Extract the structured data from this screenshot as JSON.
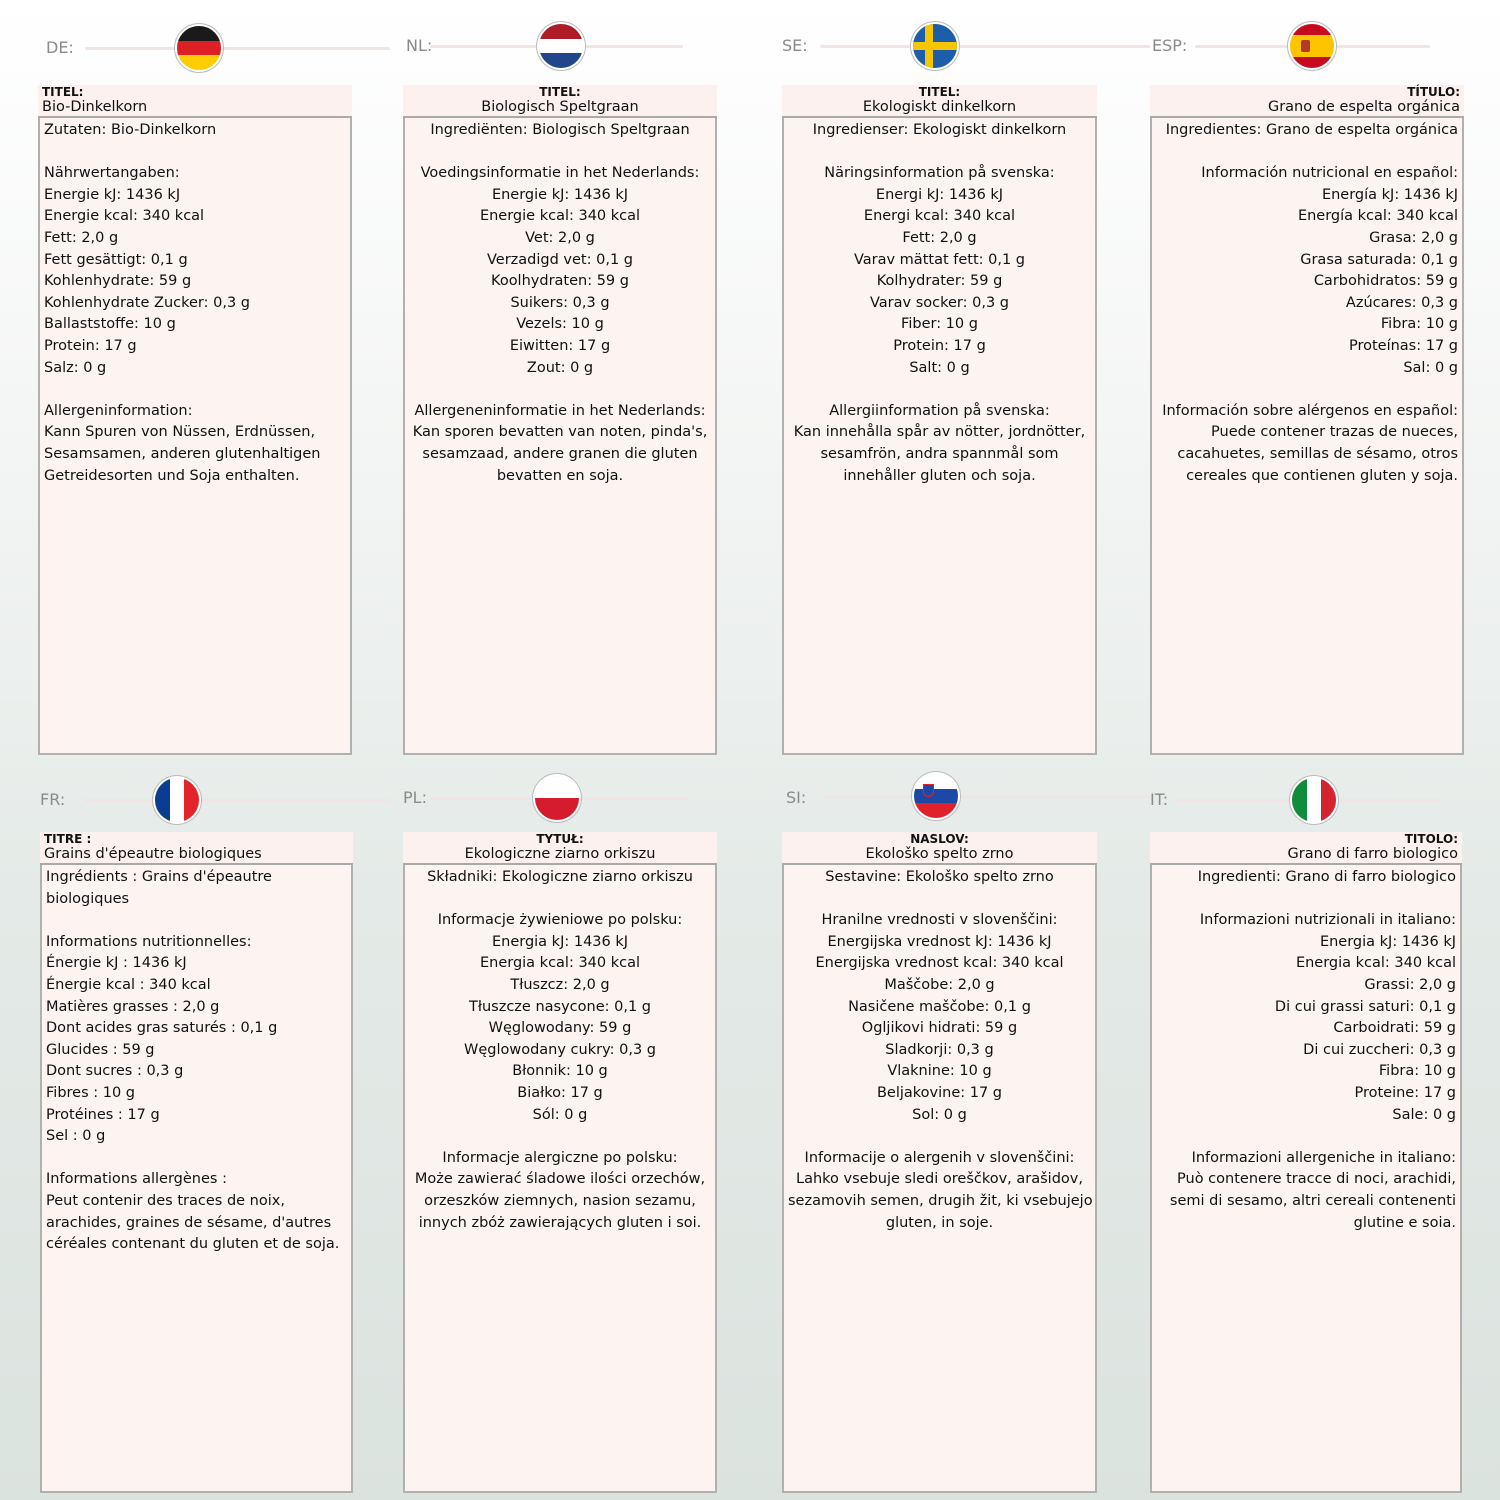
{
  "panels": [
    {
      "code": "DE:",
      "flag": "germany",
      "title_label": "TITEL:",
      "title": "Bio-Dinkelkorn",
      "align": "left",
      "lines": [
        "Zutaten: Bio-Dinkelkorn",
        "",
        "Nährwertangaben:",
        "Energie kJ: 1436 kJ",
        "Energie kcal: 340 kcal",
        "Fett: 2,0 g",
        "Fett gesättigt: 0,1 g",
        "Kohlenhydrate: 59 g",
        "Kohlenhydrate Zucker: 0,3 g",
        "Ballaststoffe: 10 g",
        "Protein: 17 g",
        "Salz: 0 g",
        "",
        "Allergeninformation:",
        "Kann Spuren von Nüssen, Erdnüssen,",
        "Sesamsamen, anderen glutenhaltigen",
        "Getreidesorten und Soja enthalten."
      ]
    },
    {
      "code": "NL:",
      "flag": "netherlands",
      "title_label": "TITEL:",
      "title": "Biologisch Speltgraan",
      "align": "center",
      "lines": [
        "Ingrediënten: Biologisch Speltgraan",
        "",
        "Voedingsinformatie in het Nederlands:",
        "Energie kJ: 1436 kJ",
        "Energie kcal: 340 kcal",
        "Vet: 2,0 g",
        "Verzadigd vet: 0,1 g",
        "Koolhydraten: 59 g",
        "Suikers: 0,3 g",
        "Vezels: 10 g",
        "Eiwitten: 17 g",
        "Zout: 0 g",
        "",
        "Allergeneninformatie in het Nederlands:",
        "Kan sporen bevatten van noten, pinda's,",
        "sesamzaad, andere granen die gluten",
        "bevatten en soja."
      ]
    },
    {
      "code": "SE:",
      "flag": "sweden",
      "title_label": "TITEL:",
      "title": "Ekologiskt dinkelkorn",
      "align": "center",
      "lines": [
        "Ingredienser: Ekologiskt dinkelkorn",
        "",
        "Näringsinformation på svenska:",
        "Energi kJ: 1436 kJ",
        "Energi kcal: 340 kcal",
        "Fett: 2,0 g",
        "Varav mättat fett: 0,1 g",
        "Kolhydrater: 59 g",
        "Varav socker: 0,3 g",
        "Fiber: 10 g",
        "Protein: 17 g",
        "Salt: 0 g",
        "",
        "Allergiinformation på svenska:",
        "Kan innehålla spår av nötter, jordnötter,",
        "sesamfrön, andra spannmål som",
        "innehåller gluten och soja."
      ]
    },
    {
      "code": "ESP:",
      "flag": "spain",
      "title_label": "TÍTULO:",
      "title": "Grano de espelta orgánica",
      "align": "right",
      "lines": [
        "Ingredientes: Grano de espelta orgánica",
        "",
        "Información nutricional en español:",
        "Energía kJ: 1436 kJ",
        "Energía kcal: 340 kcal",
        "Grasa: 2,0 g",
        "Grasa saturada: 0,1 g",
        "Carbohidratos: 59 g",
        "Azúcares: 0,3 g",
        "Fibra: 10 g",
        "Proteínas: 17 g",
        "Sal: 0 g",
        "",
        "Información sobre alérgenos en español:",
        "Puede contener trazas de nueces,",
        "cacahuetes, semillas de sésamo, otros",
        "cereales que contienen gluten y soja."
      ]
    },
    {
      "code": "FR:",
      "flag": "france",
      "title_label": "TITRE :",
      "title": "Grains d'épeautre biologiques",
      "align": "left",
      "lines": [
        "Ingrédients : Grains d'épeautre",
        "biologiques",
        "",
        "Informations nutritionnelles:",
        "Énergie kJ : 1436 kJ",
        "Énergie kcal : 340 kcal",
        "Matières grasses : 2,0 g",
        "Dont acides gras saturés : 0,1 g",
        "Glucides : 59 g",
        "Dont sucres : 0,3 g",
        "Fibres : 10 g",
        "Protéines : 17 g",
        "Sel : 0 g",
        "",
        "Informations allergènes :",
        "Peut contenir des traces de noix,",
        "arachides, graines de sésame, d'autres",
        "céréales contenant du gluten et de soja."
      ]
    },
    {
      "code": "PL:",
      "flag": "poland",
      "title_label": "TYTUŁ:",
      "title": "Ekologiczne ziarno orkiszu",
      "align": "center",
      "lines": [
        "Składniki: Ekologiczne ziarno orkiszu",
        "",
        "Informacje żywieniowe po polsku:",
        "Energia kJ: 1436 kJ",
        "Energia kcal: 340 kcal",
        "Tłuszcz: 2,0 g",
        "Tłuszcze nasycone: 0,1 g",
        "Węglowodany: 59 g",
        "Węglowodany cukry: 0,3 g",
        "Błonnik: 10 g",
        "Białko: 17 g",
        "Sól: 0 g",
        "",
        "Informacje alergiczne po polsku:",
        "Może zawierać śladowe ilości orzechów,",
        "orzeszków ziemnych, nasion sezamu,",
        "innych zbóż zawierających gluten i soi."
      ]
    },
    {
      "code": "SI:",
      "flag": "slovenia",
      "title_label": "NASLOV:",
      "title": "Ekološko spelto zrno",
      "align": "center",
      "lines": [
        "Sestavine: Ekološko spelto zrno",
        "",
        "Hranilne vrednosti v slovenščini:",
        "Energijska vrednost kJ: 1436 kJ",
        "Energijska vrednost kcal: 340 kcal",
        "Maščobe: 2,0 g",
        "Nasičene maščobe: 0,1 g",
        "Ogljikovi hidrati: 59 g",
        "Sladkorji: 0,3 g",
        "Vlaknine: 10 g",
        "Beljakovine: 17 g",
        "Sol: 0 g",
        "",
        "Informacije o alergenih v slovenščini:",
        "Lahko vsebuje sledi oreščkov, arašidov,",
        "sezamovih semen, drugih žit, ki vsebujejo",
        "gluten, in soje."
      ]
    },
    {
      "code": "IT:",
      "flag": "italy",
      "title_label": "TITOLO:",
      "title": "Grano di farro biologico",
      "align": "right",
      "lines": [
        "Ingredienti: Grano di farro biologico",
        "",
        "Informazioni nutrizionali in italiano:",
        "Energia kJ: 1436 kJ",
        "Energia kcal: 340 kcal",
        "Grassi: 2,0 g",
        "Di cui grassi saturi: 0,1 g",
        "Carboidrati: 59 g",
        "Di cui zuccheri: 0,3 g",
        "Fibra: 10 g",
        "Proteine: 17 g",
        "Sale: 0 g",
        "",
        "Informazioni allergeniche in italiano:",
        "Può contenere tracce di noci, arachidi,",
        "semi di sesamo, altri cereali contenenti",
        "glutine e soia."
      ]
    }
  ]
}
